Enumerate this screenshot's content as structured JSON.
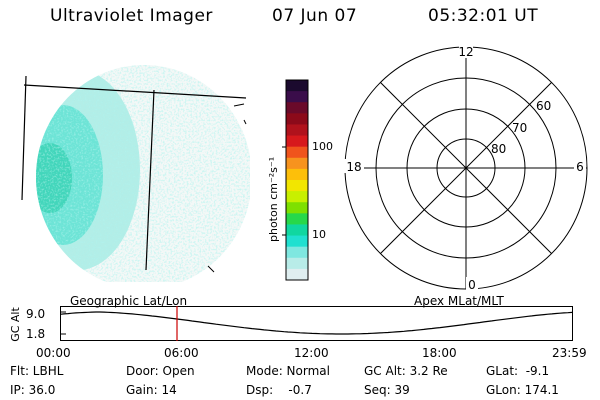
{
  "header": {
    "title": "Ultraviolet Imager",
    "date": "07 Jun 07",
    "time": "05:32:01 UT"
  },
  "colorbar": {
    "label": "photon cm⁻²s⁻¹",
    "ticks": [
      "100",
      "10"
    ],
    "colors": [
      "#1b0a2e",
      "#3a0d4a",
      "#6a0a2a",
      "#8c0a1a",
      "#b0121c",
      "#d7191c",
      "#f0541c",
      "#f7931e",
      "#fdbf0a",
      "#f2e600",
      "#c8f000",
      "#7ee000",
      "#27d84a",
      "#10d7a0",
      "#20e0d0",
      "#7fe7e0",
      "#b8ece8",
      "#dfeef0"
    ]
  },
  "polar": {
    "labels": [
      "12",
      "18",
      "6",
      "0"
    ],
    "lat_labels": [
      "60",
      "70",
      "80"
    ]
  },
  "altitude_plot": {
    "left_label": "Geographic Lat/Lon",
    "right_label": "Apex MLat/MLT",
    "axis_label": "GC Alt",
    "yticks": [
      "9.0",
      "1.8"
    ],
    "xticks": [
      "00:00",
      "06:00",
      "12:00",
      "18:00",
      "23:59"
    ],
    "current_marker_color": "#cc0000"
  },
  "info": {
    "flt": "Flt: LBHL",
    "door": "Door: Open",
    "mode": "Mode: Normal",
    "gc_alt": "GC Alt: 3.2 Re",
    "glat": "GLat:  -9.1",
    "ip": "IP: 36.0",
    "gain": "Gain: 14",
    "dsp": "Dsp:    -0.7",
    "seq": "Seq: 39",
    "glon": "GLon: 174.1"
  }
}
